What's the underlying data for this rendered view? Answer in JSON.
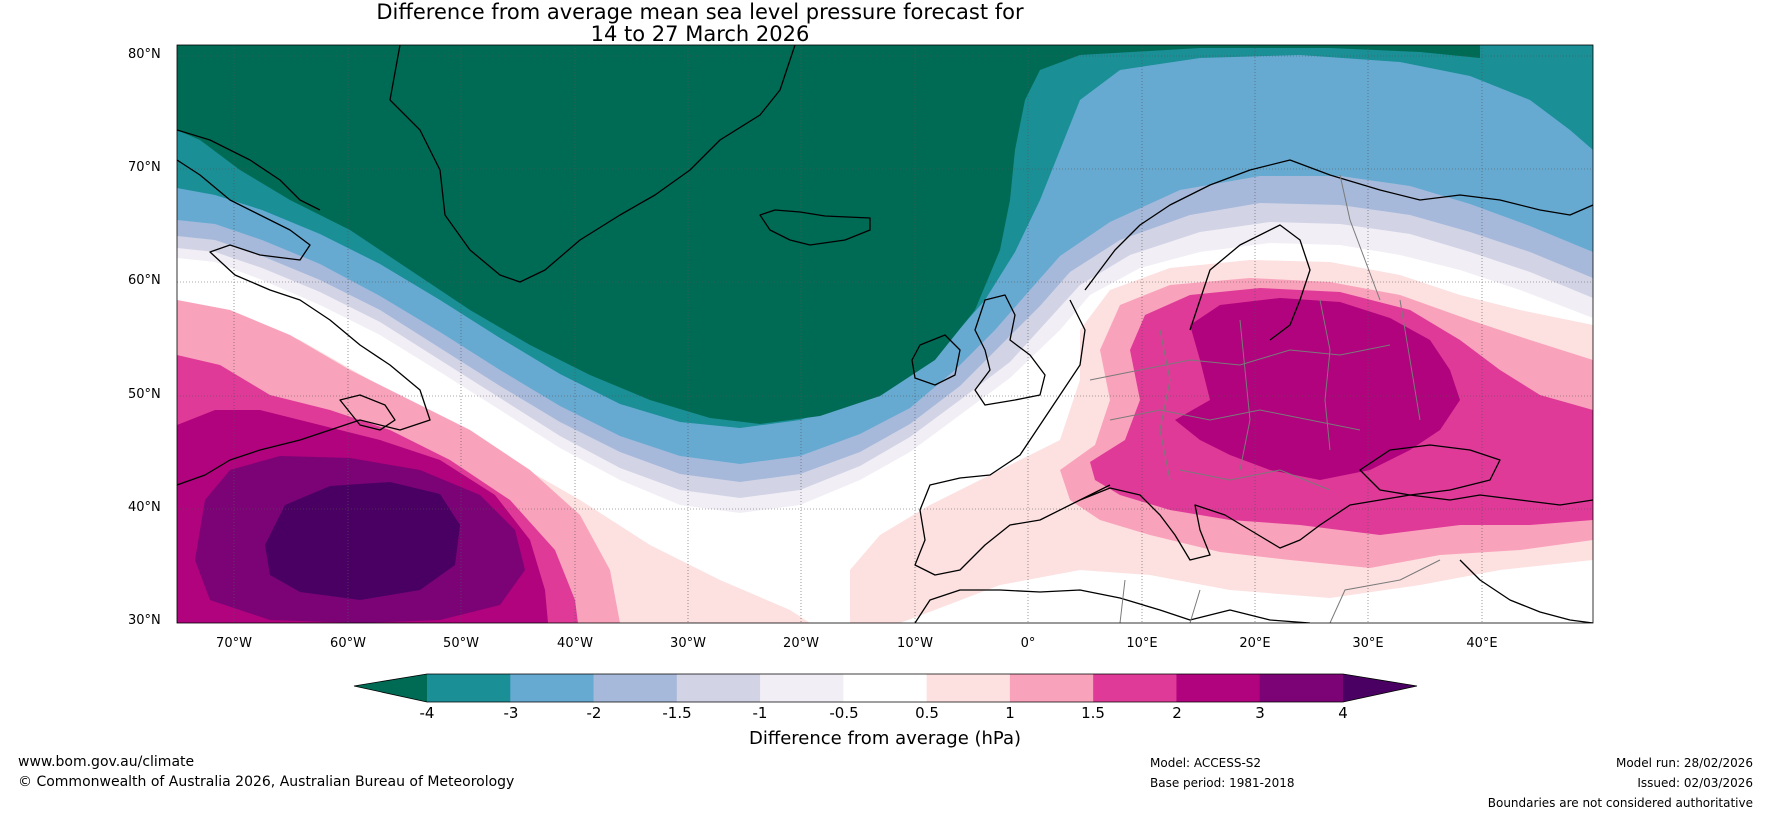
{
  "title": {
    "line1": "Difference from average mean sea level pressure forecast for",
    "line2": "14 to 27 March 2026"
  },
  "axes": {
    "lat_labels": [
      "80°N",
      "70°N",
      "60°N",
      "50°N",
      "40°N",
      "30°N"
    ],
    "lon_labels": [
      "70°W",
      "60°W",
      "50°W",
      "40°W",
      "30°W",
      "20°W",
      "10°W",
      "0°",
      "10°E",
      "20°E",
      "30°E",
      "40°E"
    ]
  },
  "colorbar": {
    "ticks": [
      "-4",
      "-3",
      "-2",
      "-1.5",
      "-1",
      "-0.5",
      "0.5",
      "1",
      "1.5",
      "2",
      "3",
      "4"
    ],
    "colors": [
      "#1a8f96",
      "#66aad2",
      "#a7b9da",
      "#d2d4e6",
      "#f2eef5",
      "#ffffff",
      "#fde0e0",
      "#f9a2bb",
      "#df3a98",
      "#b0037d",
      "#7c0376"
    ],
    "under_color": "#006b55",
    "over_color": "#4a0062",
    "label": "Difference from average (hPa)"
  },
  "footer": {
    "website": "www.bom.gov.au/climate",
    "copyright": "© Commonwealth of Australia 2026, Australian Bureau of Meteorology",
    "model": "Model: ACCESS-S2",
    "base_period": "Base period: 1981-2018",
    "model_run": "Model run: 28/02/2026",
    "issued": "Issued: 02/03/2026",
    "disclaimer": "Boundaries are not considered authoritative"
  },
  "palette": {
    "lt_m4": "#006b55",
    "lt_m3": "#1a8f96",
    "lt_m2": "#66aad2",
    "lt_m15": "#a7b9da",
    "lt_m1": "#d2d4e6",
    "lt_m05": "#f2eef5",
    "gt_05": "#fde0e0",
    "gt_1": "#f9a2bb",
    "gt_15": "#df3a98",
    "gt_2": "#b0037d",
    "gt_3": "#7c0376",
    "gt_4": "#4a0062"
  }
}
